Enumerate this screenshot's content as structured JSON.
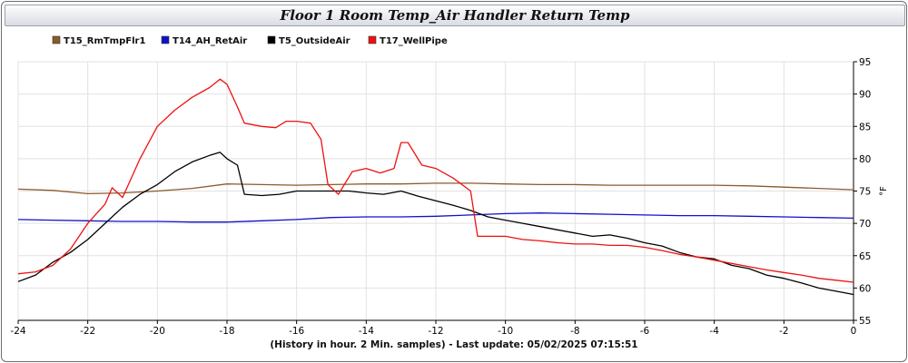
{
  "window": {
    "title": "Floor 1 Room Temp_Air Handler Return Temp"
  },
  "footer": {
    "text": "(History in hour. 2 Min. samples) - Last update: 05/02/2025 07:15:51"
  },
  "chart_data": {
    "type": "line",
    "title": "Floor 1 Room Temp_Air Handler Return Temp",
    "xlabel": "(History in hour. 2 Min. samples) - Last update: 05/02/2025 07:15:51",
    "ylabel": "°F",
    "xlim": [
      -24,
      0
    ],
    "ylim": [
      55,
      95
    ],
    "x_ticks": [
      -24,
      -22,
      -20,
      -18,
      -16,
      -14,
      -12,
      -10,
      -8,
      -6,
      -4,
      -2,
      0
    ],
    "y_ticks": [
      55,
      60,
      65,
      70,
      75,
      80,
      85,
      90,
      95
    ],
    "grid": true,
    "legend_position": "top-left",
    "series": [
      {
        "name": "T15_RmTmpFlr1",
        "color": "#8b5a2b",
        "points": [
          [
            -24,
            75.3
          ],
          [
            -23,
            75.1
          ],
          [
            -22,
            74.6
          ],
          [
            -21,
            74.7
          ],
          [
            -20,
            75.0
          ],
          [
            -19,
            75.4
          ],
          [
            -18,
            76.1
          ],
          [
            -17,
            76.0
          ],
          [
            -16,
            75.9
          ],
          [
            -15,
            76.0
          ],
          [
            -14,
            76.1
          ],
          [
            -13,
            76.1
          ],
          [
            -12,
            76.2
          ],
          [
            -11,
            76.2
          ],
          [
            -10,
            76.1
          ],
          [
            -9,
            76.0
          ],
          [
            -8,
            76.0
          ],
          [
            -7,
            75.9
          ],
          [
            -6,
            75.9
          ],
          [
            -5,
            75.9
          ],
          [
            -4,
            75.9
          ],
          [
            -3,
            75.8
          ],
          [
            -2,
            75.6
          ],
          [
            -1,
            75.4
          ],
          [
            0,
            75.2
          ]
        ]
      },
      {
        "name": "T14_AH_RetAir",
        "color": "#1010cc",
        "points": [
          [
            -24,
            70.6
          ],
          [
            -23,
            70.5
          ],
          [
            -22,
            70.4
          ],
          [
            -21,
            70.3
          ],
          [
            -20,
            70.3
          ],
          [
            -19,
            70.2
          ],
          [
            -18,
            70.2
          ],
          [
            -17,
            70.4
          ],
          [
            -16,
            70.6
          ],
          [
            -15,
            70.9
          ],
          [
            -14,
            71.0
          ],
          [
            -13,
            71.0
          ],
          [
            -12,
            71.1
          ],
          [
            -11,
            71.3
          ],
          [
            -10,
            71.5
          ],
          [
            -9,
            71.6
          ],
          [
            -8,
            71.5
          ],
          [
            -7,
            71.4
          ],
          [
            -6,
            71.3
          ],
          [
            -5,
            71.2
          ],
          [
            -4,
            71.2
          ],
          [
            -3,
            71.1
          ],
          [
            -2,
            71.0
          ],
          [
            -1,
            70.9
          ],
          [
            0,
            70.8
          ]
        ]
      },
      {
        "name": "T5_OutsideAir",
        "color": "#000000",
        "points": [
          [
            -24,
            61.0
          ],
          [
            -23.5,
            62.0
          ],
          [
            -23,
            64.0
          ],
          [
            -22.5,
            65.5
          ],
          [
            -22,
            67.5
          ],
          [
            -21.5,
            70.0
          ],
          [
            -21,
            72.5
          ],
          [
            -20.5,
            74.5
          ],
          [
            -20,
            76.0
          ],
          [
            -19.5,
            78.0
          ],
          [
            -19,
            79.5
          ],
          [
            -18.5,
            80.5
          ],
          [
            -18.2,
            81.0
          ],
          [
            -18,
            80.0
          ],
          [
            -17.7,
            79.0
          ],
          [
            -17.5,
            74.5
          ],
          [
            -17,
            74.3
          ],
          [
            -16.5,
            74.5
          ],
          [
            -16,
            75.0
          ],
          [
            -15.5,
            75.0
          ],
          [
            -15,
            75.0
          ],
          [
            -14.5,
            75.0
          ],
          [
            -14,
            74.7
          ],
          [
            -13.5,
            74.5
          ],
          [
            -13,
            75.0
          ],
          [
            -12.5,
            74.2
          ],
          [
            -12,
            73.5
          ],
          [
            -11.5,
            72.8
          ],
          [
            -11,
            72.0
          ],
          [
            -10.5,
            71.0
          ],
          [
            -10,
            70.5
          ],
          [
            -9.5,
            70.0
          ],
          [
            -9,
            69.5
          ],
          [
            -8.5,
            69.0
          ],
          [
            -8,
            68.5
          ],
          [
            -7.5,
            68.0
          ],
          [
            -7,
            68.2
          ],
          [
            -6.5,
            67.7
          ],
          [
            -6,
            67.0
          ],
          [
            -5.5,
            66.5
          ],
          [
            -5,
            65.5
          ],
          [
            -4.5,
            64.8
          ],
          [
            -4,
            64.5
          ],
          [
            -3.5,
            63.5
          ],
          [
            -3,
            63.0
          ],
          [
            -2.5,
            62.0
          ],
          [
            -2,
            61.5
          ],
          [
            -1.5,
            60.8
          ],
          [
            -1,
            60.0
          ],
          [
            -0.5,
            59.5
          ],
          [
            0,
            59.0
          ]
        ]
      },
      {
        "name": "T17_WellPipe",
        "color": "#ee1111",
        "points": [
          [
            -24,
            62.2
          ],
          [
            -23.5,
            62.5
          ],
          [
            -23,
            63.5
          ],
          [
            -22.5,
            66.0
          ],
          [
            -22,
            70.0
          ],
          [
            -21.5,
            73.0
          ],
          [
            -21.3,
            75.5
          ],
          [
            -21,
            74.0
          ],
          [
            -20.5,
            80.0
          ],
          [
            -20,
            85.0
          ],
          [
            -19.5,
            87.5
          ],
          [
            -19,
            89.5
          ],
          [
            -18.5,
            91.0
          ],
          [
            -18.2,
            92.3
          ],
          [
            -18,
            91.5
          ],
          [
            -17.7,
            88.0
          ],
          [
            -17.5,
            85.5
          ],
          [
            -17,
            85.0
          ],
          [
            -16.6,
            84.8
          ],
          [
            -16.3,
            85.8
          ],
          [
            -16,
            85.8
          ],
          [
            -15.6,
            85.5
          ],
          [
            -15.3,
            83.0
          ],
          [
            -15.1,
            76.0
          ],
          [
            -14.8,
            74.5
          ],
          [
            -14.4,
            78.0
          ],
          [
            -14,
            78.5
          ],
          [
            -13.6,
            77.8
          ],
          [
            -13.2,
            78.5
          ],
          [
            -13,
            82.5
          ],
          [
            -12.8,
            82.5
          ],
          [
            -12.4,
            79.0
          ],
          [
            -12,
            78.5
          ],
          [
            -11.5,
            77.0
          ],
          [
            -11,
            75.0
          ],
          [
            -10.8,
            68.0
          ],
          [
            -10.5,
            68.0
          ],
          [
            -10,
            68.0
          ],
          [
            -9.5,
            67.5
          ],
          [
            -9,
            67.3
          ],
          [
            -8.5,
            67.0
          ],
          [
            -8,
            66.8
          ],
          [
            -7.5,
            66.8
          ],
          [
            -7,
            66.6
          ],
          [
            -6.5,
            66.6
          ],
          [
            -6,
            66.3
          ],
          [
            -5.5,
            65.8
          ],
          [
            -5,
            65.2
          ],
          [
            -4.5,
            64.8
          ],
          [
            -4,
            64.3
          ],
          [
            -3.5,
            63.8
          ],
          [
            -3,
            63.3
          ],
          [
            -2.5,
            62.8
          ],
          [
            -2,
            62.4
          ],
          [
            -1.5,
            62.0
          ],
          [
            -1,
            61.5
          ],
          [
            -0.5,
            61.2
          ],
          [
            0,
            60.9
          ]
        ]
      }
    ]
  }
}
